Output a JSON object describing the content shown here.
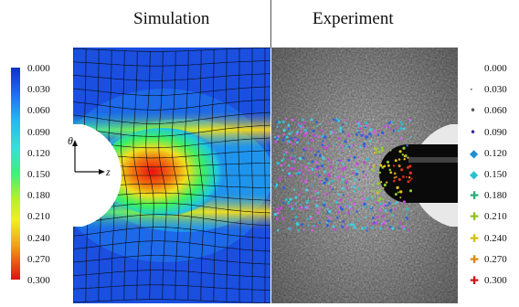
{
  "titles": {
    "simulation": "Simulation",
    "experiment": "Experiment"
  },
  "axis_labels": {
    "theta": "θ",
    "z": "z"
  },
  "colorbar_left": {
    "ticks": [
      "0.000",
      "0.030",
      "0.060",
      "0.090",
      "0.120",
      "0.150",
      "0.180",
      "0.210",
      "0.240",
      "0.270",
      "0.300"
    ]
  },
  "colorbar_right": {
    "ticks": [
      "0.000",
      "0.030",
      "0.060",
      "0.090",
      "0.120",
      "0.150",
      "0.180",
      "0.210",
      "0.240",
      "0.270",
      "0.300"
    ],
    "markers": [
      {
        "symbol": "",
        "color": "#000000"
      },
      {
        "symbol": "·",
        "color": "#333333"
      },
      {
        "symbol": "•",
        "color": "#555555"
      },
      {
        "symbol": "•",
        "color": "#2a2a9a"
      },
      {
        "symbol": "◆",
        "color": "#1f8fd0"
      },
      {
        "symbol": "◆",
        "color": "#2cc0d0"
      },
      {
        "symbol": "✚",
        "color": "#2ab07a"
      },
      {
        "symbol": "✚",
        "color": "#90c020"
      },
      {
        "symbol": "✚",
        "color": "#d8c010"
      },
      {
        "symbol": "✚",
        "color": "#e08a10"
      },
      {
        "symbol": "✚",
        "color": "#d01818"
      }
    ]
  },
  "colors": {
    "background_field": "#1a4fe0",
    "grid_line": "#0a0a0a",
    "hot": "#e81010"
  }
}
